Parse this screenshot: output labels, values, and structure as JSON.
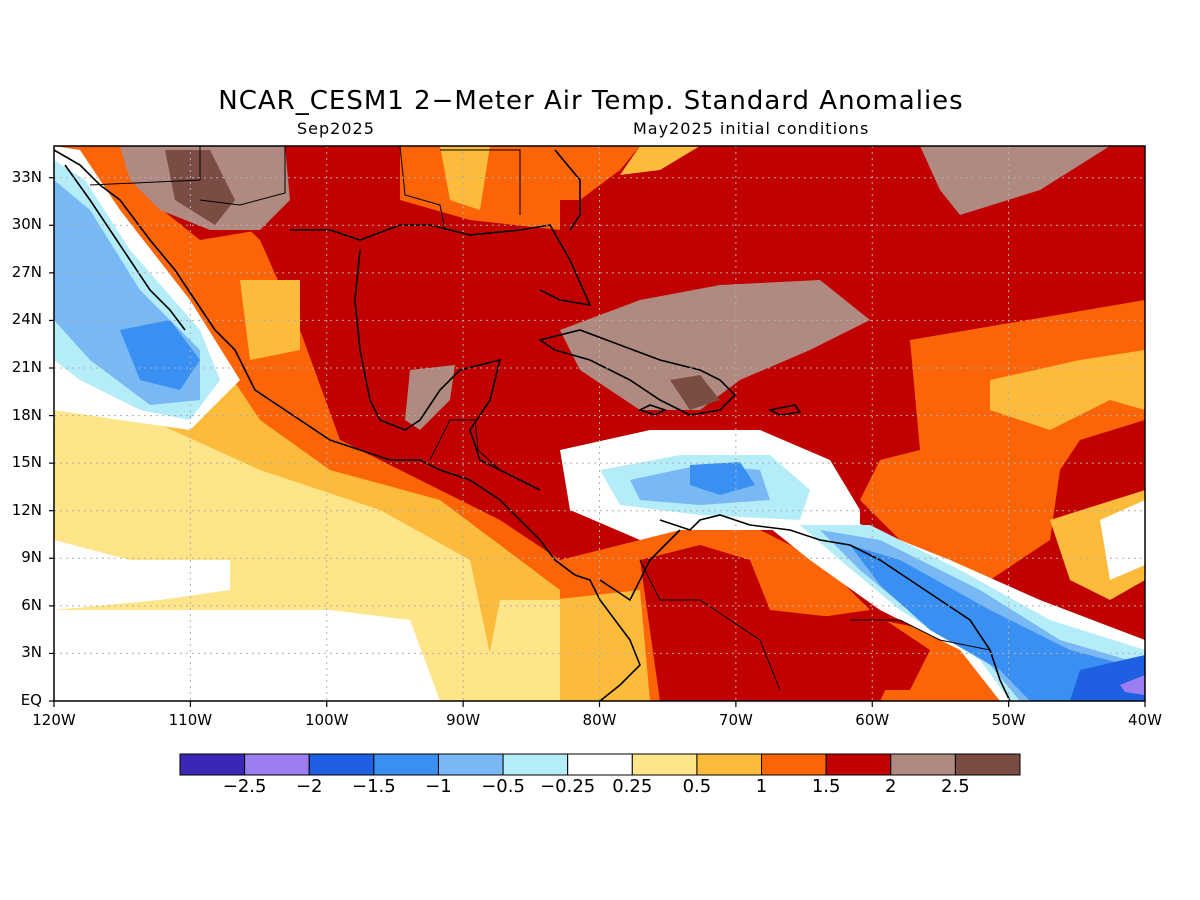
{
  "title": "NCAR_CESM1 2−Meter Air Temp. Standard Anomalies",
  "subtitle_left": "Sep2025",
  "subtitle_right": "May2025 initial conditions",
  "map": {
    "lon_range": [
      -120,
      -40
    ],
    "lat_range": [
      0,
      35
    ],
    "grid": true,
    "lat_labels": [
      "EQ",
      "3N",
      "6N",
      "9N",
      "12N",
      "15N",
      "18N",
      "21N",
      "24N",
      "27N",
      "30N",
      "33N"
    ],
    "lon_labels": [
      "120W",
      "110W",
      "100W",
      "90W",
      "80W",
      "70W",
      "60W",
      "50W",
      "40W"
    ]
  },
  "colorbar": {
    "colors": [
      "#3a27b4",
      "#9c7ef2",
      "#1f5fe2",
      "#3a8ff2",
      "#78b8f4",
      "#b4ecf8",
      "#ffffff",
      "#ffe58a",
      "#fdbb3b",
      "#fb6508",
      "#c10000",
      "#b08a80",
      "#7a4c44"
    ],
    "labels": [
      "−2.5",
      "−2",
      "−1.5",
      "−1",
      "−0.5",
      "−0.25",
      "0.25",
      "0.5",
      "1",
      "1.5",
      "2",
      "2.5"
    ]
  }
}
